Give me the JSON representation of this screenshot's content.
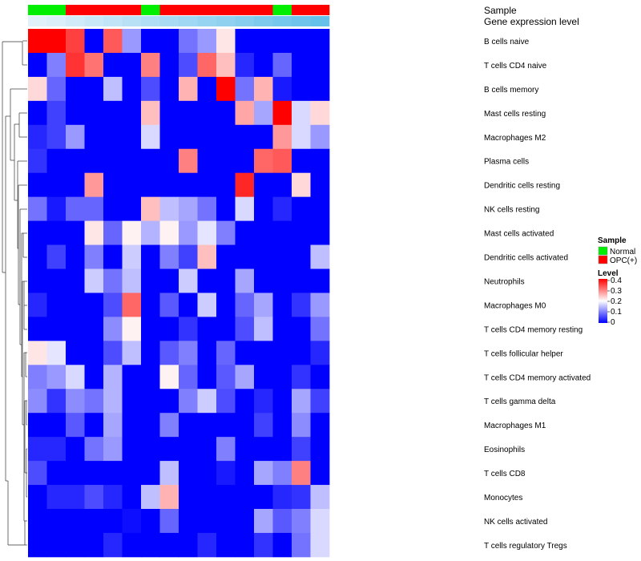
{
  "chart_data": {
    "type": "heatmap",
    "annotation_tracks": [
      {
        "name": "Sample",
        "values": [
          "Normal",
          "Normal",
          "OPC(+)",
          "OPC(+)",
          "OPC(+)",
          "OPC(+)",
          "Normal",
          "OPC(+)",
          "OPC(+)",
          "OPC(+)",
          "OPC(+)",
          "OPC(+)",
          "OPC(+)",
          "Normal",
          "OPC(+)",
          "OPC(+)"
        ]
      },
      {
        "name": "Gene expression level",
        "values": [
          0.05,
          0.1,
          0.16,
          0.22,
          0.28,
          0.34,
          0.4,
          0.46,
          0.52,
          0.58,
          0.64,
          0.7,
          0.76,
          0.82,
          0.88,
          0.94
        ]
      }
    ],
    "rows": [
      "B cells naive",
      "T cells CD4 naive",
      "B cells memory",
      "Mast cells resting",
      "Macrophages M2",
      "Plasma cells",
      "Dendritic cells resting",
      "NK cells resting",
      "Mast cells activated",
      "Dendritic cells activated",
      "Neutrophils",
      "Macrophages M0",
      "T cells CD4 memory resting",
      "T cells follicular helper",
      "T cells CD4 memory activated",
      "T cells gamma delta",
      "Macrophages M1",
      "Eosinophils",
      "T cells CD8",
      "Monocytes",
      "NK cells activated",
      "T cells regulatory  Tregs"
    ],
    "values": [
      [
        0.4,
        0.4,
        0.35,
        0.0,
        0.33,
        0.12,
        0.0,
        0.0,
        0.09,
        0.12,
        0.22,
        0.0,
        0.0,
        0.0,
        0.0,
        0.0
      ],
      [
        0.0,
        0.1,
        0.36,
        0.31,
        0.0,
        0.0,
        0.3,
        0.0,
        0.06,
        0.32,
        0.25,
        0.03,
        0.0,
        0.08,
        0.0,
        0.0
      ],
      [
        0.23,
        0.08,
        0.0,
        0.0,
        0.15,
        0.0,
        0.06,
        0.0,
        0.26,
        0.0,
        0.4,
        0.09,
        0.26,
        0.02,
        0.0,
        0.0
      ],
      [
        0.0,
        0.05,
        0.0,
        0.0,
        0.0,
        0.0,
        0.25,
        0.0,
        0.0,
        0.0,
        0.0,
        0.27,
        0.13,
        0.4,
        0.17,
        0.23
      ],
      [
        0.03,
        0.05,
        0.12,
        0.0,
        0.0,
        0.0,
        0.17,
        0.0,
        0.0,
        0.0,
        0.0,
        0.0,
        0.0,
        0.28,
        0.17,
        0.12
      ],
      [
        0.04,
        0.0,
        0.0,
        0.0,
        0.0,
        0.0,
        0.0,
        0.0,
        0.3,
        0.0,
        0.0,
        0.0,
        0.32,
        0.33,
        0.0,
        0.0
      ],
      [
        0.0,
        0.0,
        0.0,
        0.28,
        0.0,
        0.0,
        0.0,
        0.0,
        0.0,
        0.0,
        0.0,
        0.37,
        0.0,
        0.0,
        0.23,
        0.0
      ],
      [
        0.09,
        0.02,
        0.08,
        0.08,
        0.0,
        0.0,
        0.25,
        0.15,
        0.13,
        0.09,
        0.0,
        0.17,
        0.0,
        0.03,
        0.0,
        0.0
      ],
      [
        0.0,
        0.0,
        0.0,
        0.22,
        0.08,
        0.21,
        0.14,
        0.21,
        0.12,
        0.18,
        0.1,
        0.0,
        0.0,
        0.0,
        0.0,
        0.0
      ],
      [
        0.0,
        0.05,
        0.0,
        0.1,
        0.0,
        0.16,
        0.0,
        0.1,
        0.05,
        0.25,
        0.0,
        0.0,
        0.0,
        0.0,
        0.0,
        0.15
      ],
      [
        0.0,
        0.0,
        0.0,
        0.16,
        0.09,
        0.15,
        0.0,
        0.0,
        0.16,
        0.0,
        0.0,
        0.13,
        0.0,
        0.0,
        0.0,
        0.0
      ],
      [
        0.03,
        0.0,
        0.0,
        0.0,
        0.06,
        0.32,
        0.0,
        0.07,
        0.0,
        0.16,
        0.0,
        0.08,
        0.13,
        0.0,
        0.04,
        0.12
      ],
      [
        0.0,
        0.0,
        0.0,
        0.0,
        0.11,
        0.21,
        0.0,
        0.0,
        0.04,
        0.0,
        0.0,
        0.06,
        0.15,
        0.0,
        0.0,
        0.09
      ],
      [
        0.22,
        0.18,
        0.0,
        0.0,
        0.06,
        0.15,
        0.0,
        0.07,
        0.1,
        0.0,
        0.08,
        0.0,
        0.0,
        0.0,
        0.0,
        0.03
      ],
      [
        0.1,
        0.12,
        0.17,
        0.0,
        0.14,
        0.0,
        0.0,
        0.21,
        0.08,
        0.0,
        0.07,
        0.13,
        0.0,
        0.0,
        0.04,
        0.0
      ],
      [
        0.11,
        0.04,
        0.11,
        0.09,
        0.14,
        0.0,
        0.0,
        0.0,
        0.1,
        0.16,
        0.06,
        0.0,
        0.03,
        0.0,
        0.13,
        0.05
      ],
      [
        0.0,
        0.0,
        0.07,
        0.0,
        0.13,
        0.0,
        0.0,
        0.1,
        0.0,
        0.0,
        0.0,
        0.0,
        0.05,
        0.0,
        0.11,
        0.0
      ],
      [
        0.03,
        0.03,
        0.0,
        0.09,
        0.12,
        0.0,
        0.0,
        0.0,
        0.0,
        0.0,
        0.1,
        0.0,
        0.0,
        0.0,
        0.05,
        0.0
      ],
      [
        0.06,
        0.0,
        0.0,
        0.0,
        0.0,
        0.0,
        0.0,
        0.15,
        0.0,
        0.0,
        0.02,
        0.0,
        0.13,
        0.1,
        0.3,
        0.0
      ],
      [
        0.0,
        0.03,
        0.03,
        0.06,
        0.03,
        0.0,
        0.15,
        0.26,
        0.0,
        0.0,
        0.0,
        0.0,
        0.0,
        0.03,
        0.04,
        0.15
      ],
      [
        0.0,
        0.0,
        0.0,
        0.0,
        0.0,
        0.01,
        0.0,
        0.08,
        0.0,
        0.0,
        0.0,
        0.0,
        0.13,
        0.07,
        0.1,
        0.17
      ],
      [
        0.0,
        0.0,
        0.0,
        0.0,
        0.03,
        0.0,
        0.0,
        0.0,
        0.0,
        0.03,
        0.0,
        0.0,
        0.04,
        0.0,
        0.09,
        0.17
      ]
    ],
    "color_scale": {
      "min": 0,
      "max": 0.4,
      "low": "#0000ff",
      "mid": "#ffffff",
      "high": "#ff0000",
      "mid_value": 0.2
    },
    "dendrogram": "rows",
    "legend": {
      "sample_title": "Sample",
      "sample_entries": [
        {
          "label": "Normal",
          "color": "#00ee00"
        },
        {
          "label": "OPC(+)",
          "color": "#ff0000"
        }
      ],
      "level_title": "Level",
      "level_ticks": [
        "0.4",
        "0.3",
        "0.2",
        "0.1",
        "0"
      ],
      "placement": "right"
    },
    "colors": {
      "gene_low": "#e8f4fb",
      "gene_high": "#5dbde9"
    }
  }
}
